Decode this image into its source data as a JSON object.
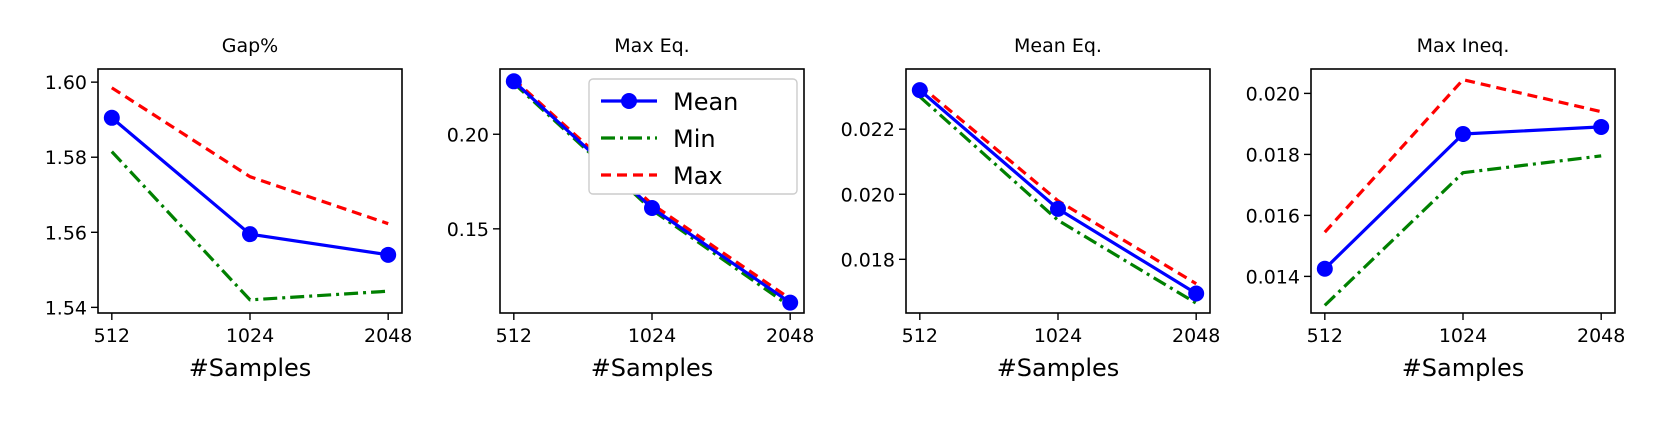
{
  "colors": {
    "Mean": "#0000ff",
    "Min": "#008000",
    "Max": "#ff0000"
  },
  "chart_data": [
    {
      "type": "line",
      "title": "Gap%",
      "xlabel": "#Samples",
      "x": [
        512,
        1024,
        2048
      ],
      "xticks": [
        "512",
        "1024",
        "2048"
      ],
      "ylim": [
        1.5385,
        1.6035
      ],
      "yticks": [
        1.54,
        1.56,
        1.58,
        1.6
      ],
      "ytick_labels": [
        "1.54",
        "1.56",
        "1.58",
        "1.60"
      ],
      "series": [
        {
          "name": "Mean",
          "values": [
            1.5905,
            1.5595,
            1.554
          ]
        },
        {
          "name": "Min",
          "values": [
            1.5815,
            1.542,
            1.5443
          ]
        },
        {
          "name": "Max",
          "values": [
            1.5985,
            1.5748,
            1.5623
          ]
        }
      ],
      "legend": false
    },
    {
      "type": "line",
      "title": "Max Eq.",
      "xlabel": "#Samples",
      "x": [
        512,
        1024,
        2048
      ],
      "xticks": [
        "512",
        "1024",
        "2048"
      ],
      "ylim": [
        0.1055,
        0.2345
      ],
      "yticks": [
        0.15,
        0.2
      ],
      "ytick_labels": [
        "0.15",
        "0.20"
      ],
      "series": [
        {
          "name": "Mean",
          "values": [
            0.228,
            0.161,
            0.111
          ]
        },
        {
          "name": "Min",
          "values": [
            0.227,
            0.16,
            0.109
          ]
        },
        {
          "name": "Max",
          "values": [
            0.229,
            0.163,
            0.113
          ]
        }
      ],
      "legend": true,
      "legend_position": "upper right"
    },
    {
      "type": "line",
      "title": "Mean Eq.",
      "xlabel": "#Samples",
      "x": [
        512,
        1024,
        2048
      ],
      "xticks": [
        "512",
        "1024",
        "2048"
      ],
      "ylim": [
        0.01635,
        0.02385
      ],
      "yticks": [
        0.018,
        0.02,
        0.022
      ],
      "ytick_labels": [
        "0.018",
        "0.020",
        "0.022"
      ],
      "series": [
        {
          "name": "Mean",
          "values": [
            0.0232,
            0.01955,
            0.01695
          ]
        },
        {
          "name": "Min",
          "values": [
            0.023,
            0.0192,
            0.01665
          ]
        },
        {
          "name": "Max",
          "values": [
            0.02335,
            0.0198,
            0.01725
          ]
        }
      ],
      "legend": false
    },
    {
      "type": "line",
      "title": "Max Ineq.",
      "xlabel": "#Samples",
      "x": [
        512,
        1024,
        2048
      ],
      "xticks": [
        "512",
        "1024",
        "2048"
      ],
      "ylim": [
        0.0128,
        0.0208
      ],
      "yticks": [
        0.014,
        0.016,
        0.018,
        0.02
      ],
      "ytick_labels": [
        "0.014",
        "0.016",
        "0.018",
        "0.020"
      ],
      "series": [
        {
          "name": "Mean",
          "values": [
            0.01425,
            0.01867,
            0.0189
          ]
        },
        {
          "name": "Min",
          "values": [
            0.01305,
            0.0174,
            0.01795
          ]
        },
        {
          "name": "Max",
          "values": [
            0.01545,
            0.02045,
            0.0194
          ]
        }
      ],
      "legend": false
    }
  ]
}
